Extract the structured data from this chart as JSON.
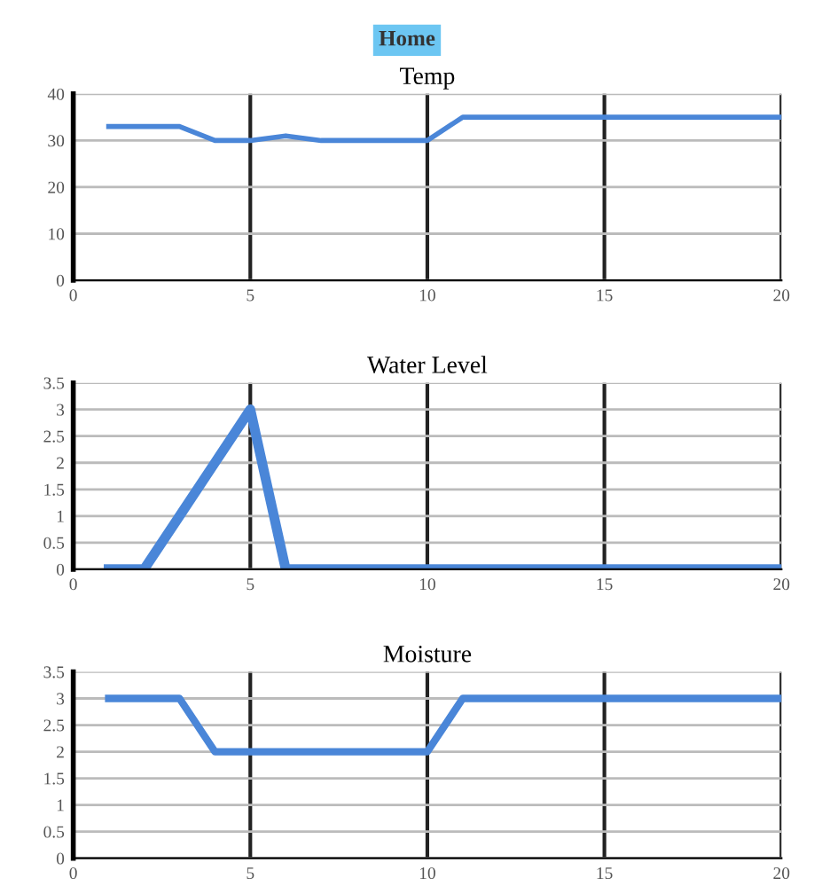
{
  "chart_data": [
    {
      "type": "line",
      "title": "Temp",
      "annotations": [
        "Home"
      ],
      "x": [
        1,
        2,
        3,
        4,
        5,
        6,
        7,
        8,
        9,
        10,
        11,
        12,
        13,
        14,
        15,
        16,
        17,
        18,
        19,
        20
      ],
      "series": [
        {
          "color": "#4a86d8",
          "values": [
            33,
            33,
            33,
            30,
            30,
            31,
            30,
            30,
            30,
            30,
            35,
            35,
            35,
            35,
            35,
            35,
            35,
            35,
            35,
            35
          ]
        }
      ],
      "xlim": [
        0,
        20
      ],
      "xticks": [
        0,
        5,
        10,
        15,
        20
      ],
      "ylim": [
        0,
        40
      ],
      "yticks": [
        0,
        10,
        20,
        30,
        40
      ],
      "grid": true,
      "marker": "none",
      "line_style": "solid"
    },
    {
      "type": "line",
      "title": "Water Level",
      "x": [
        1,
        2,
        3,
        4,
        5,
        6,
        7,
        8,
        9,
        10,
        11,
        12,
        13,
        14,
        15,
        16,
        17,
        18,
        19,
        20
      ],
      "series": [
        {
          "color": "#4a86d8",
          "values": [
            0,
            0,
            1,
            2,
            3,
            0,
            0,
            0,
            0,
            0,
            0,
            0,
            0,
            0,
            0,
            0,
            0,
            0,
            0,
            0
          ]
        }
      ],
      "xlim": [
        0,
        20
      ],
      "xticks": [
        0,
        5,
        10,
        15,
        20
      ],
      "ylim": [
        0,
        3.5
      ],
      "yticks": [
        0,
        0.5,
        1,
        1.5,
        2,
        2.5,
        3,
        3.5
      ],
      "grid": true,
      "marker": "none",
      "line_style": "solid"
    },
    {
      "type": "line",
      "title": "Moisture",
      "x": [
        1,
        2,
        3,
        4,
        5,
        6,
        7,
        8,
        9,
        10,
        11,
        12,
        13,
        14,
        15,
        16,
        17,
        18,
        19,
        20
      ],
      "series": [
        {
          "color": "#4a86d8",
          "values": [
            3,
            3,
            3,
            2,
            2,
            2,
            2,
            2,
            2,
            2,
            3,
            3,
            3,
            3,
            3,
            3,
            3,
            3,
            3,
            3
          ]
        }
      ],
      "xlim": [
        0,
        20
      ],
      "xticks": [
        0,
        5,
        10,
        15,
        20
      ],
      "ylim": [
        0,
        3.5
      ],
      "yticks": [
        0,
        0.5,
        1,
        1.5,
        2,
        2.5,
        3,
        3.5
      ],
      "grid": true,
      "marker": "none",
      "line_style": "solid"
    }
  ]
}
